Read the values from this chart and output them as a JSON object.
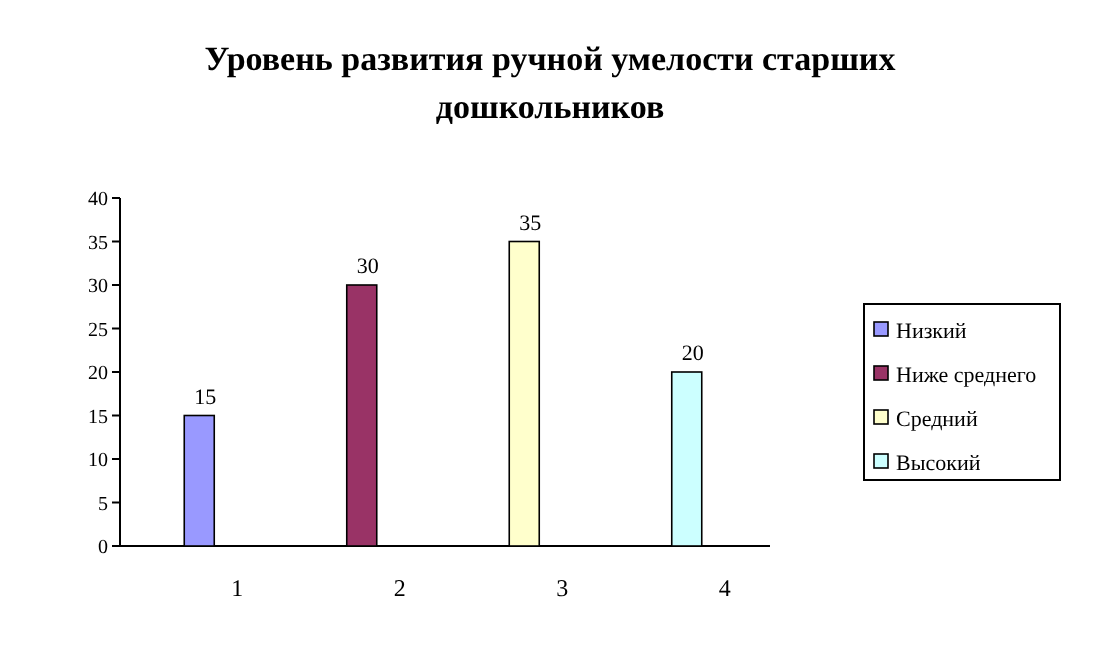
{
  "chart_data": {
    "type": "bar",
    "title": "Уровень развития ручной умелости старших дошкольников",
    "categories": [
      "1",
      "2",
      "3",
      "4"
    ],
    "series": [
      {
        "name": "Низкий",
        "color": "#9999ff",
        "values": [
          15,
          null,
          null,
          null
        ]
      },
      {
        "name": "Ниже среднего",
        "color": "#993366",
        "values": [
          null,
          30,
          null,
          null
        ]
      },
      {
        "name": "Средний",
        "color": "#ffffcc",
        "values": [
          null,
          null,
          35,
          null
        ]
      },
      {
        "name": "Высокий",
        "color": "#ccffff",
        "values": [
          null,
          null,
          null,
          20
        ]
      }
    ],
    "ylim": [
      0,
      40
    ],
    "yticks": [
      0,
      5,
      10,
      15,
      20,
      25,
      30,
      35,
      40
    ],
    "data_labels": true,
    "legend": "right",
    "grid": false
  }
}
